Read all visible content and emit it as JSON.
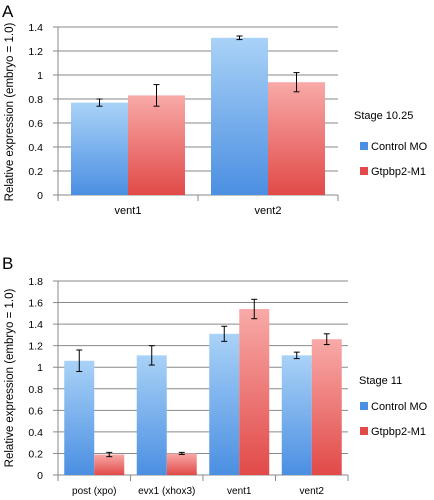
{
  "chart_data": [
    {
      "type": "bar",
      "panel_label": "A",
      "stage_label": "Stage 10.25",
      "ylabel": "Relative expression (embryo = 1.0)",
      "xlabel": "",
      "ylim": [
        0,
        1.4
      ],
      "yticks": [
        0,
        0.2,
        0.4,
        0.6,
        0.8,
        1,
        1.2,
        1.4
      ],
      "ytick_labels": [
        "0",
        "0.2",
        "0.4",
        "0.6",
        "0.8",
        "1",
        "1.2",
        "1.4"
      ],
      "grid": true,
      "legend_position": "right",
      "categories": [
        "vent1",
        "vent2"
      ],
      "series": [
        {
          "name": "Control MO",
          "values": [
            0.77,
            1.31
          ],
          "errors": [
            0.03,
            0.015
          ]
        },
        {
          "name": "Gtpbp2-M1",
          "values": [
            0.83,
            0.94
          ],
          "errors": [
            0.09,
            0.08
          ]
        }
      ]
    },
    {
      "type": "bar",
      "panel_label": "B",
      "stage_label": "Stage 11",
      "ylabel": "Relative expression (embryo = 1.0)",
      "xlabel": "",
      "ylim": [
        0,
        1.8
      ],
      "yticks": [
        0,
        0.2,
        0.4,
        0.6,
        0.8,
        1,
        1.2,
        1.4,
        1.6,
        1.8
      ],
      "ytick_labels": [
        "0",
        "0.2",
        "0.4",
        "0.6",
        "0.8",
        "1",
        "1.2",
        "1.4",
        "1.6",
        "1.8"
      ],
      "grid": true,
      "legend_position": "right",
      "categories": [
        "post (xpo)",
        "evx1 (xhox3)",
        "vent1",
        "vent2"
      ],
      "series": [
        {
          "name": "Control MO",
          "values": [
            1.06,
            1.11,
            1.31,
            1.11
          ],
          "errors": [
            0.1,
            0.09,
            0.07,
            0.03
          ]
        },
        {
          "name": "Gtpbp2-M1",
          "values": [
            0.19,
            0.2,
            1.54,
            1.26
          ],
          "errors": [
            0.02,
            0.01,
            0.09,
            0.05
          ]
        }
      ]
    }
  ],
  "colors": {
    "control_top": "#a9d2f7",
    "control_bottom": "#4b8fe2",
    "gtpbp2_top": "#f8aaa8",
    "gtpbp2_bottom": "#e14a48",
    "grid": "#8a8a8a",
    "axis": "#8a8a8a"
  }
}
